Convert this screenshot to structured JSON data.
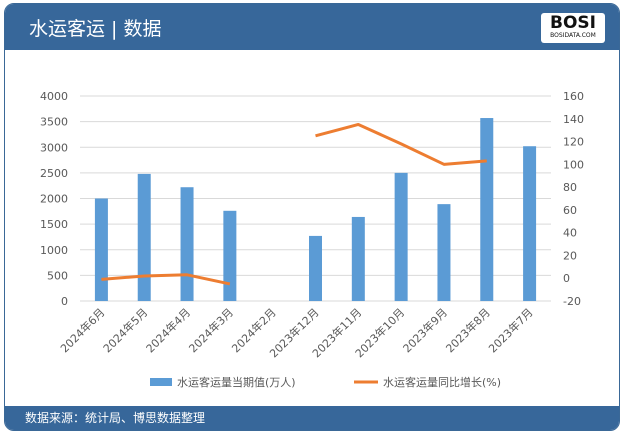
{
  "header": {
    "title": "水运客运 | 数据",
    "logo_text": "BOSI",
    "logo_sub": "BOSIDATA.COM"
  },
  "footer": {
    "source": "数据来源：统计局、博思数据整理"
  },
  "colors": {
    "bar": "#5b9bd5",
    "line": "#ed7d31",
    "header": "#37679a"
  },
  "chart_data": {
    "type": "bar+line",
    "categories": [
      "2024年6月",
      "2024年5月",
      "2024年4月",
      "2024年3月",
      "2024年2月",
      "2023年12月",
      "2023年11月",
      "2023年10月",
      "2023年9月",
      "2023年8月",
      "2023年7月"
    ],
    "series": [
      {
        "name": "水运客运量当期值(万人)",
        "type": "bar",
        "axis": "left",
        "values": [
          2000,
          2480,
          2220,
          1760,
          null,
          1270,
          1640,
          2500,
          1890,
          3570,
          3020
        ]
      },
      {
        "name": "水运客运量同比增长(%)",
        "type": "line",
        "axis": "right",
        "values": [
          -1,
          2,
          3,
          -5,
          null,
          125,
          135,
          118,
          100,
          103,
          null
        ]
      }
    ],
    "y_left": {
      "range": [
        0,
        4000
      ],
      "ticks": [
        0,
        500,
        1000,
        1500,
        2000,
        2500,
        3000,
        3500,
        4000
      ]
    },
    "y_right": {
      "range": [
        -20,
        160
      ],
      "ticks": [
        -20,
        0,
        20,
        40,
        60,
        80,
        100,
        120,
        140,
        160
      ]
    },
    "grid": true,
    "legend": "bottom"
  }
}
